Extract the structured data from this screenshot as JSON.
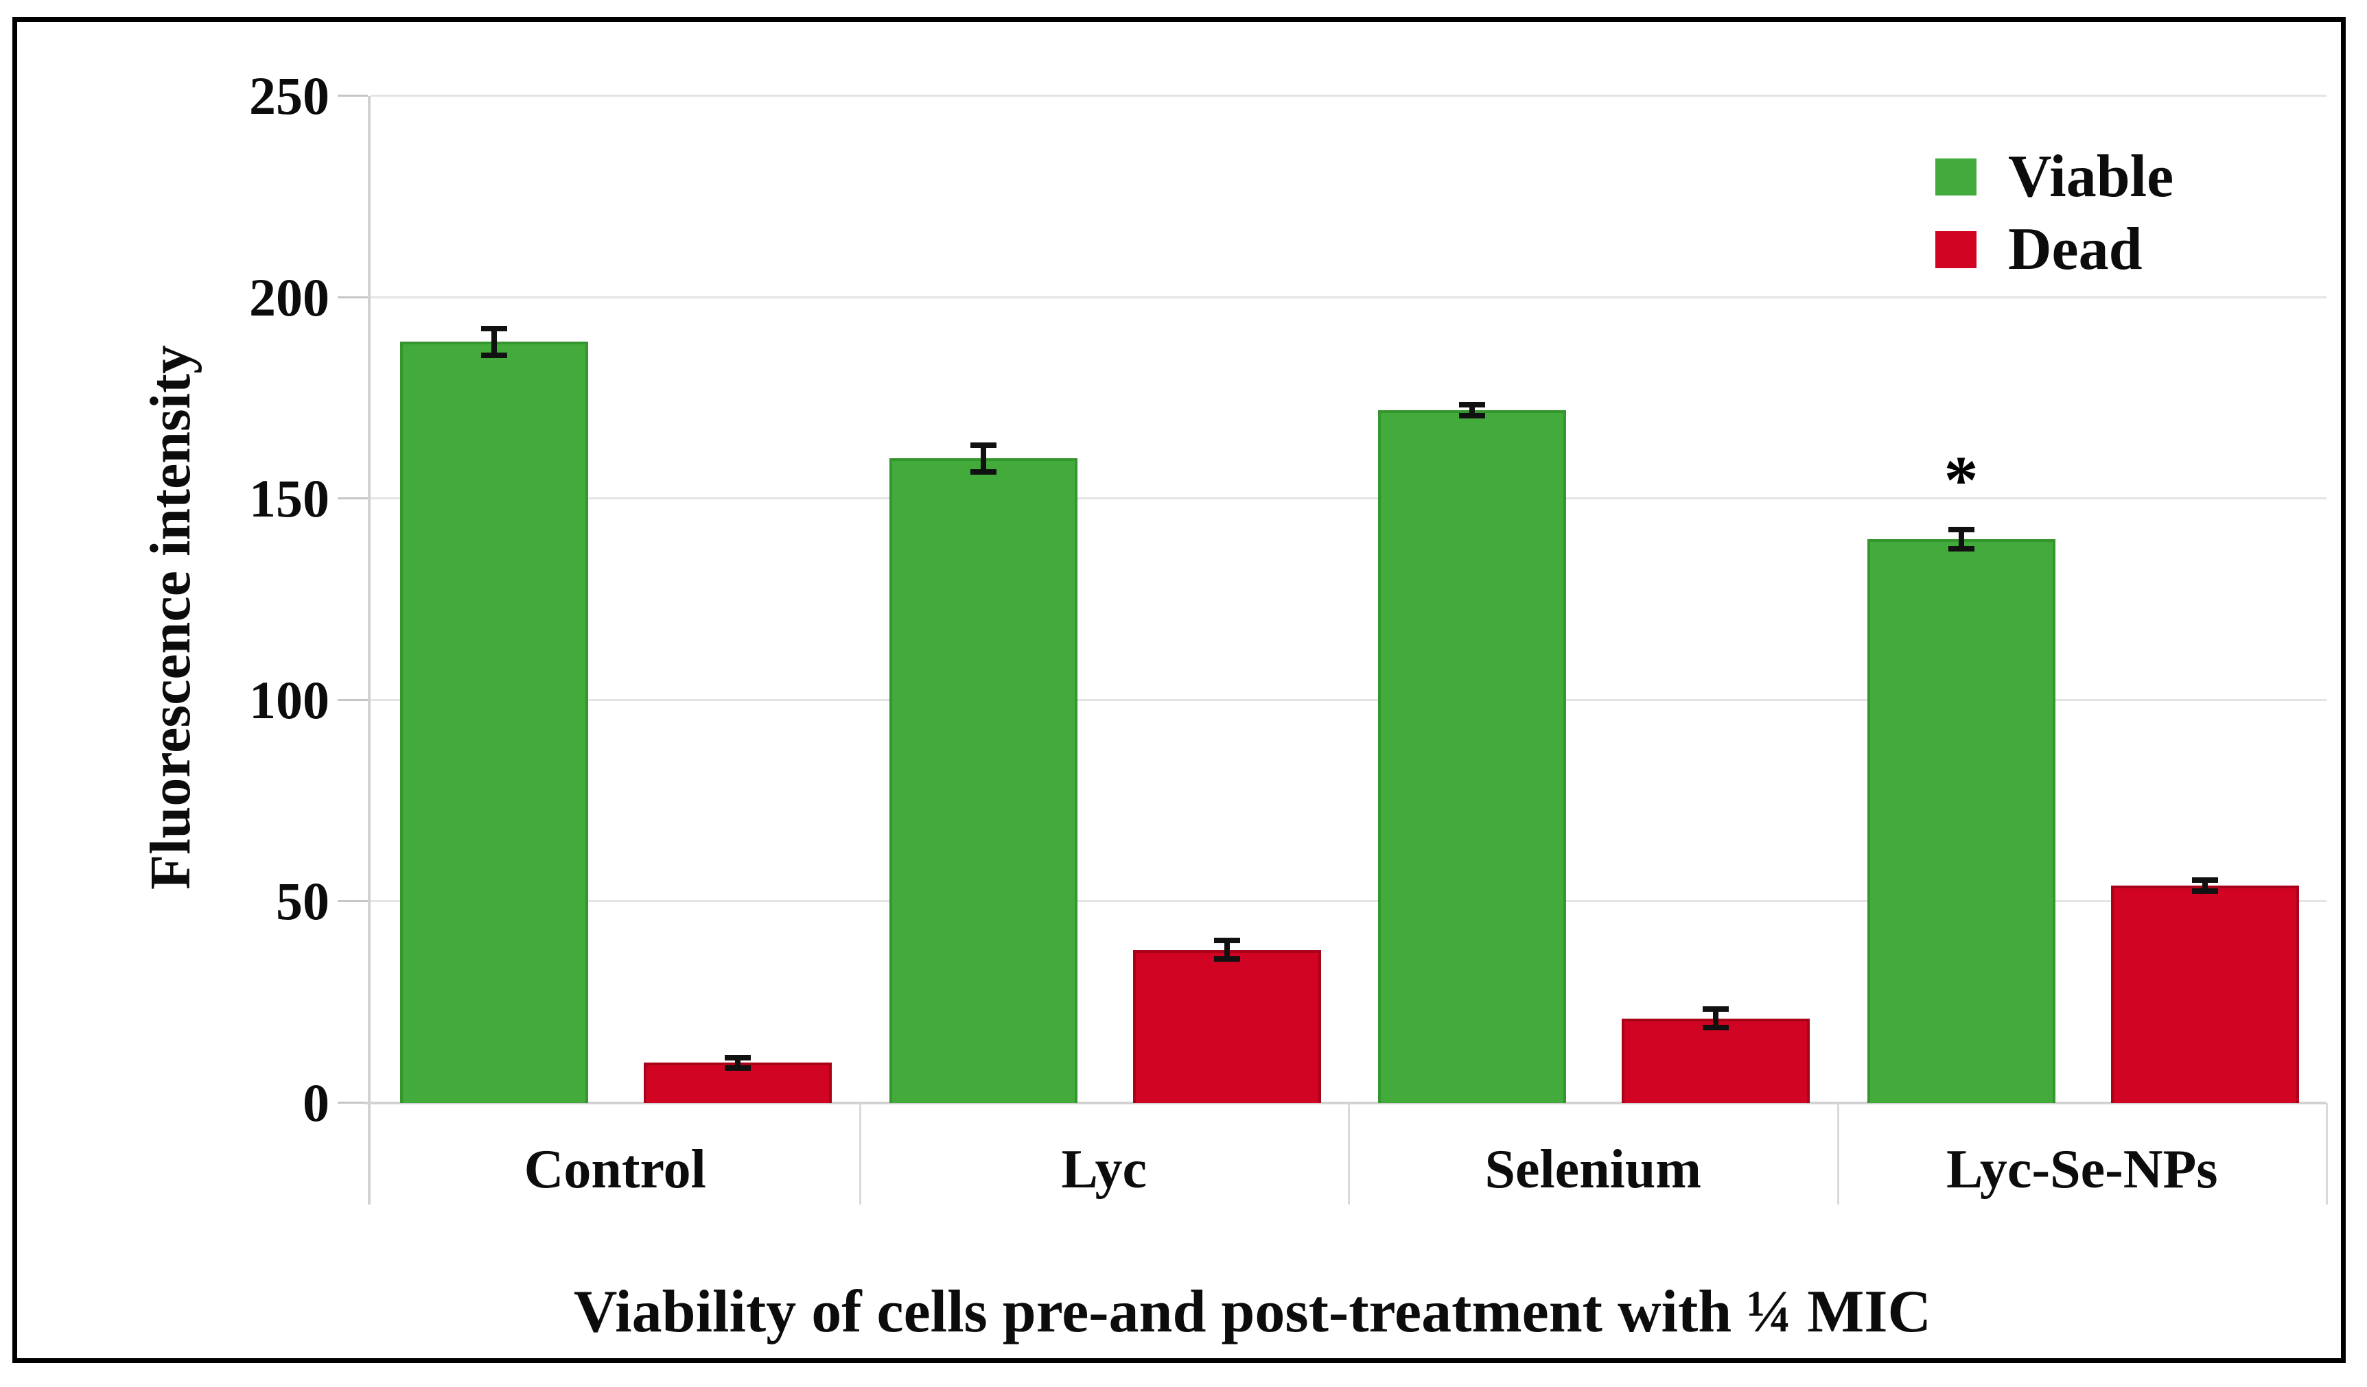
{
  "figure": {
    "border_color": "#000000",
    "background": "#ffffff"
  },
  "legend": {
    "items": [
      {
        "label": "Viable",
        "swatch_color": "#43ab3b"
      },
      {
        "label": "Dead",
        "swatch_color": "#d20423"
      }
    ]
  },
  "chart_data": {
    "type": "bar",
    "title": "Viability of cells pre-and post-treatment with ¼ MIC",
    "xlabel": "",
    "ylabel": "Fluorescence intensity",
    "ylim": [
      0,
      250
    ],
    "yticks": [
      0,
      50,
      100,
      150,
      200,
      250
    ],
    "grid": "horizontal",
    "legend_position": "top-right",
    "categories": [
      "Control",
      "Lyc",
      "Selenium",
      "Lyc-Se-NPs"
    ],
    "series": [
      {
        "name": "Viable",
        "color": "#43ab3b",
        "border_color": "#35962e",
        "values": [
          189,
          160,
          172,
          140
        ],
        "errors": [
          4,
          4,
          2,
          3
        ],
        "annotations": [
          "",
          "",
          "",
          "*"
        ]
      },
      {
        "name": "Dead",
        "color": "#d20423",
        "border_color": "#a80318",
        "values": [
          10,
          38,
          21,
          54
        ],
        "errors": [
          2,
          3,
          3,
          2
        ],
        "annotations": [
          "",
          "",
          "",
          ""
        ]
      }
    ]
  }
}
